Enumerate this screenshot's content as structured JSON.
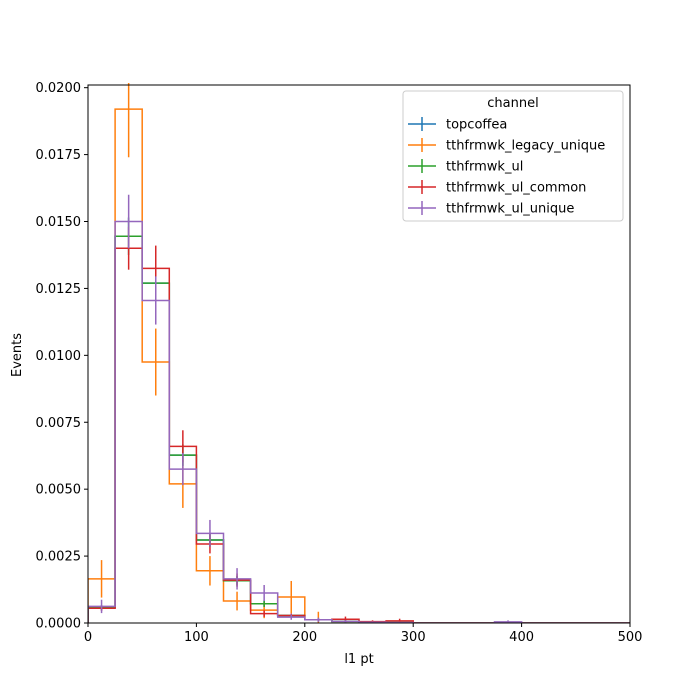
{
  "chart_data": {
    "type": "histogram-step",
    "xlabel": "l1 pt",
    "ylabel": "Events",
    "xlim": [
      0,
      500
    ],
    "ylim": [
      0,
      0.0201
    ],
    "xticks": [
      0,
      100,
      200,
      300,
      400,
      500
    ],
    "xtick_labels": [
      "0",
      "100",
      "200",
      "300",
      "400",
      "500"
    ],
    "yticks": [
      0,
      0.0025,
      0.005,
      0.0075,
      0.01,
      0.0125,
      0.015,
      0.0175,
      0.02
    ],
    "ytick_labels": [
      "0.0000",
      "0.0025",
      "0.0050",
      "0.0075",
      "0.0100",
      "0.0125",
      "0.0150",
      "0.0175",
      "0.0200"
    ],
    "bin_edges": [
      0,
      25,
      50,
      75,
      100,
      125,
      150,
      175,
      200,
      225,
      250,
      275,
      300,
      325,
      350,
      375,
      400,
      425,
      450,
      475,
      500
    ],
    "legend": {
      "title": "channel",
      "position": "top-right"
    },
    "series": [
      {
        "name": "topcoffea",
        "color": "#1f77b4",
        "values": [
          0.00058,
          0.01445,
          0.0127,
          0.00627,
          0.0031,
          0.00158,
          0.00072,
          0.00028,
          0.00012,
          6e-05,
          3e-05,
          2e-05,
          0,
          0,
          0,
          0,
          0,
          0,
          0,
          0
        ],
        "errors": [
          8e-05,
          0.0007,
          0.0006,
          0.0004,
          0.00025,
          0.00018,
          0.00012,
          7e-05,
          5e-05,
          3e-05,
          2e-05,
          1e-05,
          0,
          0,
          0,
          0,
          0,
          0,
          0,
          0
        ]
      },
      {
        "name": "tthfrmwk_legacy_unique",
        "color": "#ff7f0e",
        "values": [
          0.00165,
          0.0192,
          0.00975,
          0.0052,
          0.00195,
          0.00082,
          0.00048,
          0.00097,
          0.00012,
          6e-05,
          3e-05,
          2e-05,
          0,
          0,
          0,
          0,
          0,
          0,
          0,
          0
        ],
        "errors": [
          0.0007,
          0.0018,
          0.00125,
          0.0009,
          0.00055,
          0.00035,
          0.0003,
          0.0006,
          0.0003,
          0.0001,
          5e-05,
          3e-05,
          0,
          0,
          0,
          0,
          0,
          0,
          0,
          0
        ]
      },
      {
        "name": "tthfrmwk_ul",
        "color": "#2ca02c",
        "values": [
          0.00058,
          0.01445,
          0.0127,
          0.00627,
          0.0031,
          0.00158,
          0.00072,
          0.00028,
          0.00012,
          6e-05,
          3e-05,
          2e-05,
          0,
          0,
          0,
          0,
          0,
          0,
          0,
          0
        ],
        "errors": [
          8e-05,
          0.0007,
          0.0006,
          0.0004,
          0.00025,
          0.00018,
          0.00012,
          7e-05,
          5e-05,
          3e-05,
          2e-05,
          1e-05,
          0,
          0,
          0,
          0,
          0,
          0,
          0,
          0
        ]
      },
      {
        "name": "tthfrmwk_ul_common",
        "color": "#d62728",
        "values": [
          0.00055,
          0.014,
          0.01325,
          0.0066,
          0.00295,
          0.0016,
          0.00035,
          0.00028,
          0.00012,
          0.00014,
          5e-05,
          8e-05,
          0,
          0,
          0,
          0,
          0,
          0,
          0,
          0
        ],
        "errors": [
          0.0001,
          0.0008,
          0.00085,
          0.0006,
          0.00035,
          0.00025,
          0.00012,
          8e-05,
          6e-05,
          0.0001,
          5e-05,
          8e-05,
          0,
          0,
          0,
          0,
          0,
          0,
          0,
          0
        ]
      },
      {
        "name": "tthfrmwk_ul_unique",
        "color": "#9467bd",
        "values": [
          0.00062,
          0.015,
          0.01205,
          0.00575,
          0.00335,
          0.00165,
          0.00112,
          0.00022,
          0.00012,
          6e-05,
          3e-05,
          2e-05,
          0,
          0,
          0,
          4e-05,
          0,
          0,
          0,
          0
        ],
        "errors": [
          0.00025,
          0.001,
          0.0009,
          0.0006,
          0.0005,
          0.0004,
          0.0003,
          0.0001,
          8e-05,
          5e-05,
          3e-05,
          2e-05,
          0,
          0,
          0,
          6e-05,
          0,
          0,
          0,
          0
        ]
      }
    ]
  }
}
